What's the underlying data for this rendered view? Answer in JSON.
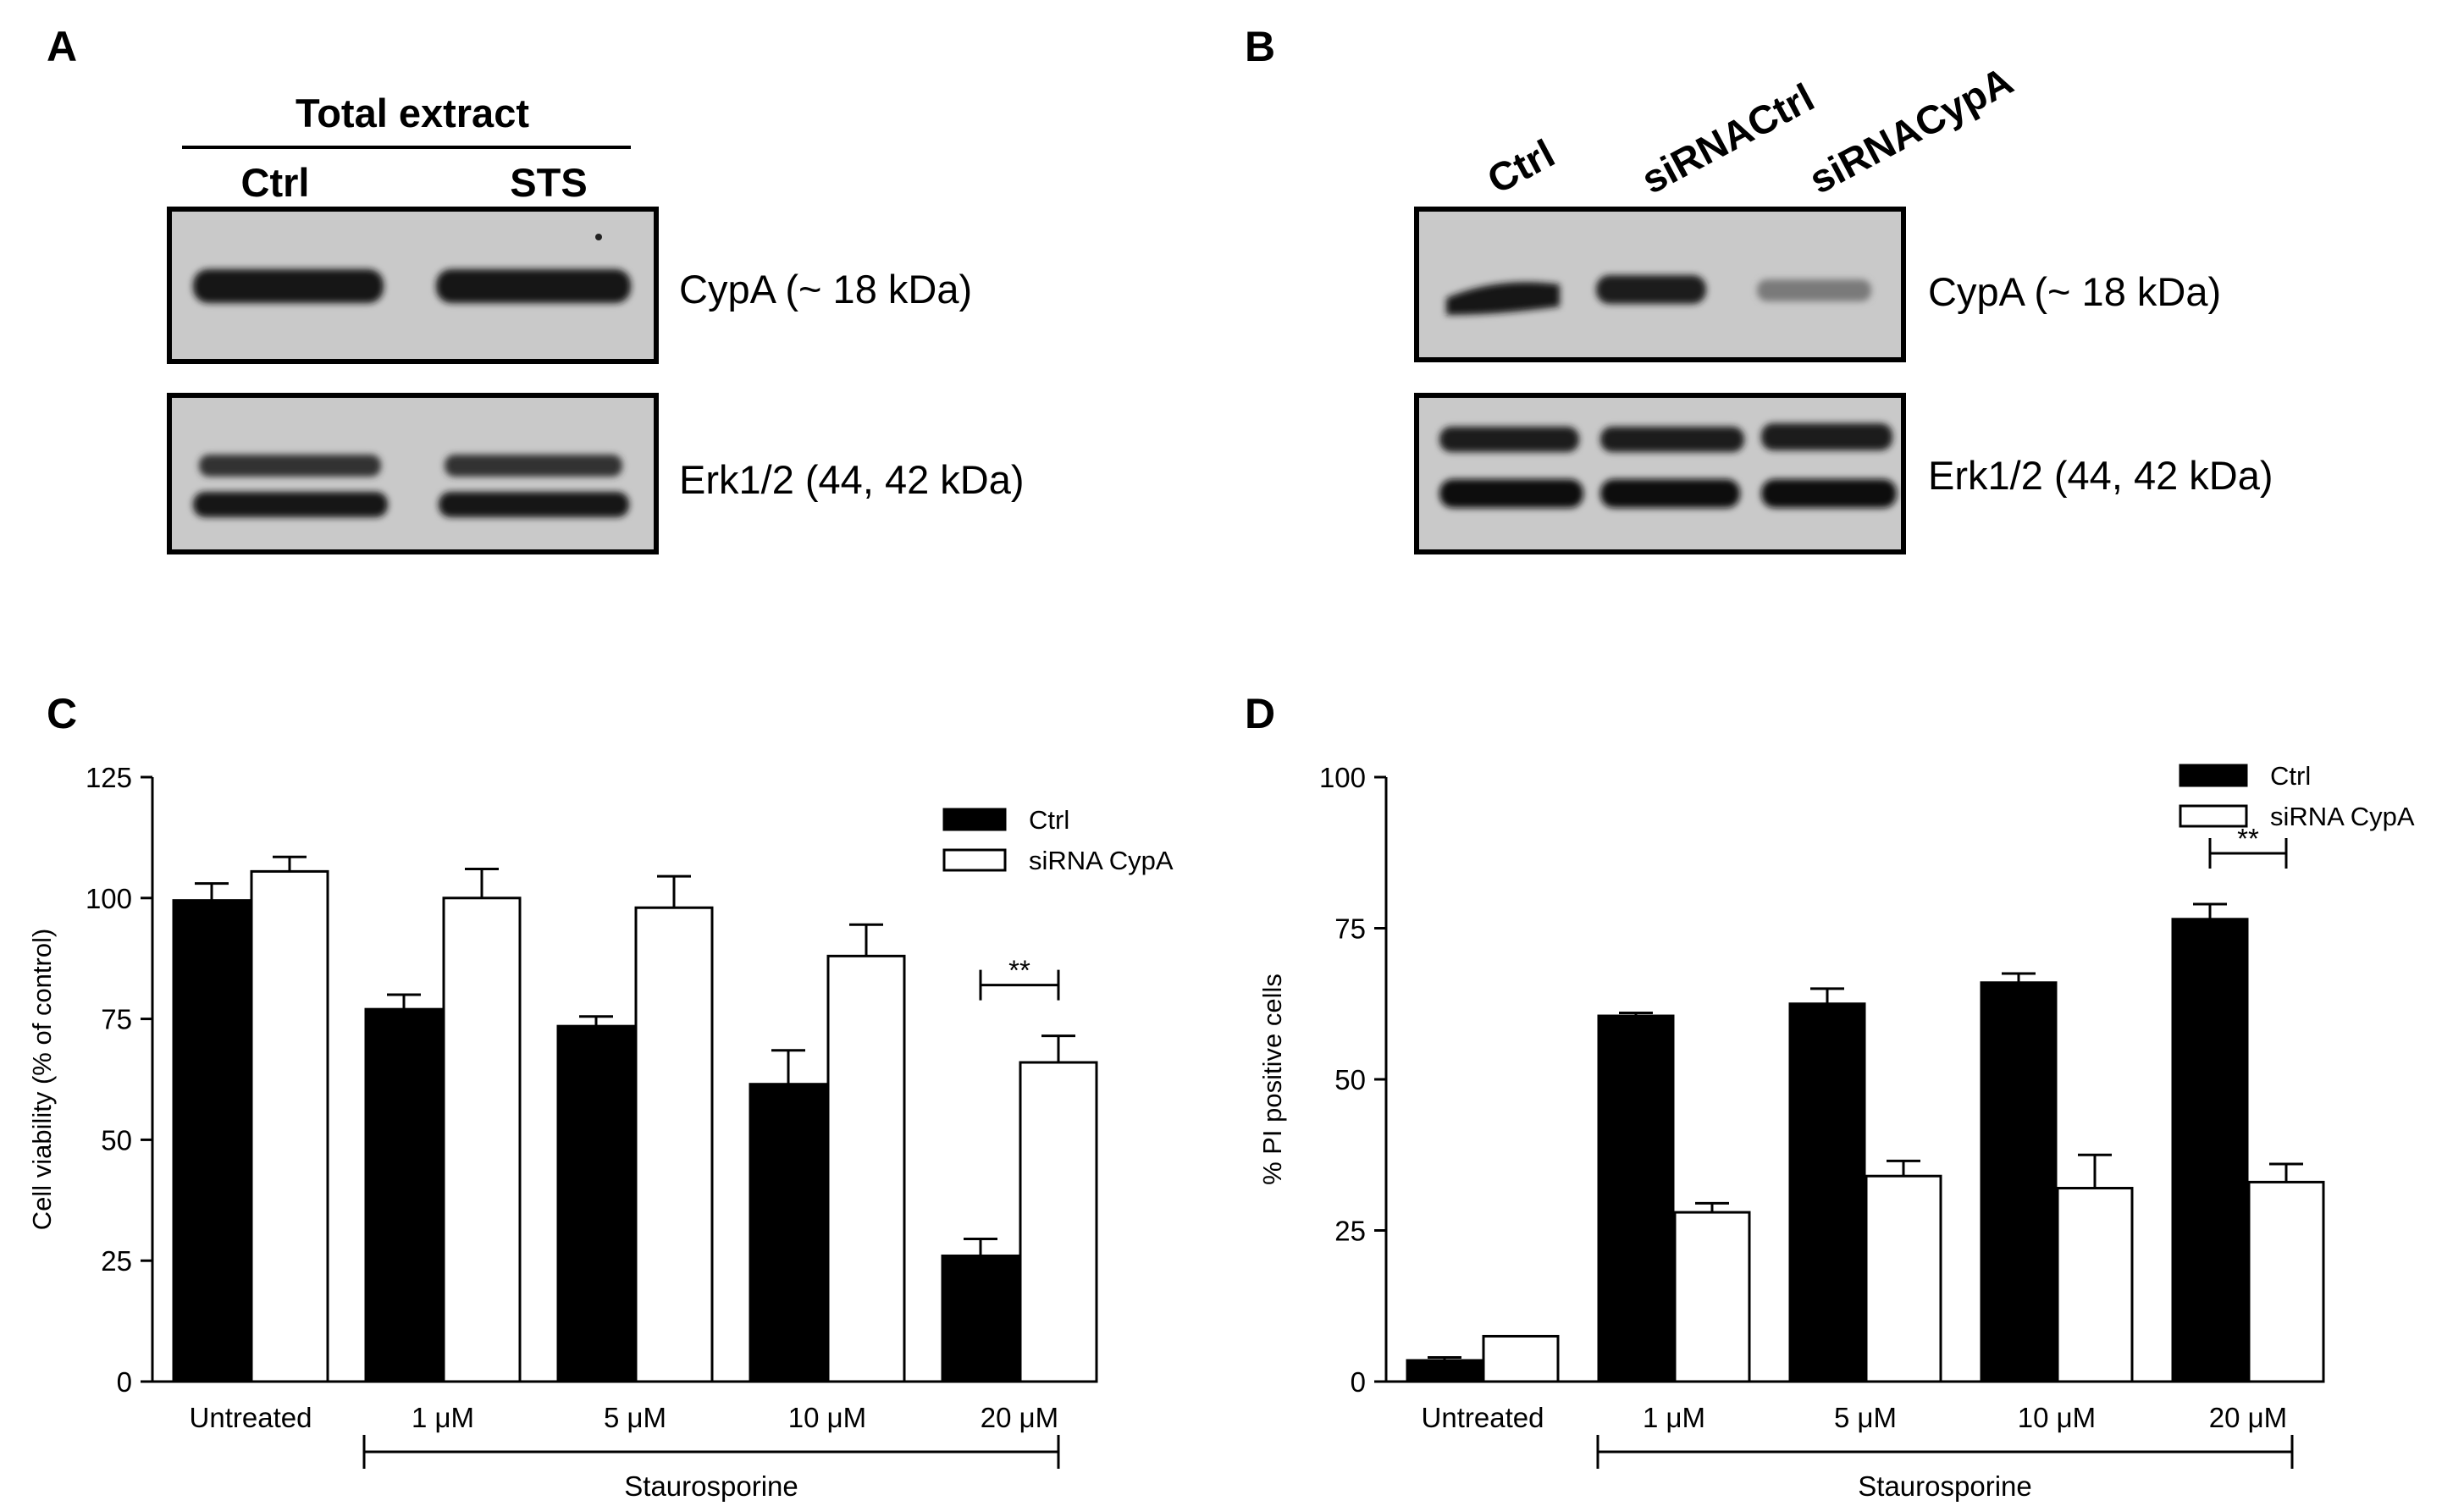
{
  "panels": {
    "A": {
      "label": "A",
      "header": "Total extract",
      "lanes": [
        "Ctrl",
        "STS"
      ],
      "blots": [
        {
          "label": "CypA (~ 18 kDa)"
        },
        {
          "label": "Erk1/2 (44, 42  kDa)"
        }
      ]
    },
    "B": {
      "label": "B",
      "lanes": [
        "Ctrl",
        "siRNACtrl",
        "siRNACypA"
      ],
      "blots": [
        {
          "label": "CypA (~ 18 kDa)"
        },
        {
          "label": "Erk1/2 (44, 42  kDa)"
        }
      ]
    },
    "C": {
      "label": "C"
    },
    "D": {
      "label": "D"
    }
  },
  "chart_data": [
    {
      "panel": "C",
      "type": "bar",
      "ylabel": "Cell viability (% of control)",
      "categories": [
        "Untreated",
        "1 μM",
        "5 μM",
        "10 μM",
        "20 μM"
      ],
      "group_label": "Staurosporine",
      "ylim": [
        0,
        125
      ],
      "yticks": [
        0,
        25,
        50,
        75,
        100,
        125
      ],
      "series": [
        {
          "name": "Ctrl",
          "color": "#000000",
          "values": [
            99.5,
            77,
            73.5,
            61.5,
            26
          ],
          "errors": [
            3.5,
            3,
            2,
            7,
            3.5
          ]
        },
        {
          "name": "siRNA CypA",
          "color": "#ffffff",
          "values": [
            105.5,
            100,
            98,
            88,
            66
          ],
          "errors": [
            3,
            6,
            6.5,
            6.5,
            5.5
          ]
        }
      ],
      "significance": [
        {
          "category": "20 μM",
          "label": "**"
        }
      ],
      "legend": "top-right"
    },
    {
      "panel": "D",
      "type": "bar",
      "ylabel": "% PI positive cells",
      "categories": [
        "Untreated",
        "1 μM",
        "5 μM",
        "10 μM",
        "20 μM"
      ],
      "group_label": "Staurosporine",
      "ylim": [
        0,
        100
      ],
      "yticks": [
        0,
        25,
        50,
        75,
        100
      ],
      "series": [
        {
          "name": "Ctrl",
          "color": "#000000",
          "values": [
            3.5,
            60.5,
            62.5,
            66,
            76.5
          ],
          "errors": [
            0.5,
            0.5,
            2.5,
            1.5,
            2.5
          ]
        },
        {
          "name": "siRNA CypA",
          "color": "#ffffff",
          "values": [
            7.5,
            28,
            34,
            32,
            33
          ],
          "errors": [
            0,
            1.5,
            2.5,
            5.5,
            3
          ]
        }
      ],
      "significance": [
        {
          "category": "20 μM",
          "label": "**"
        }
      ],
      "legend": "top-right"
    }
  ]
}
